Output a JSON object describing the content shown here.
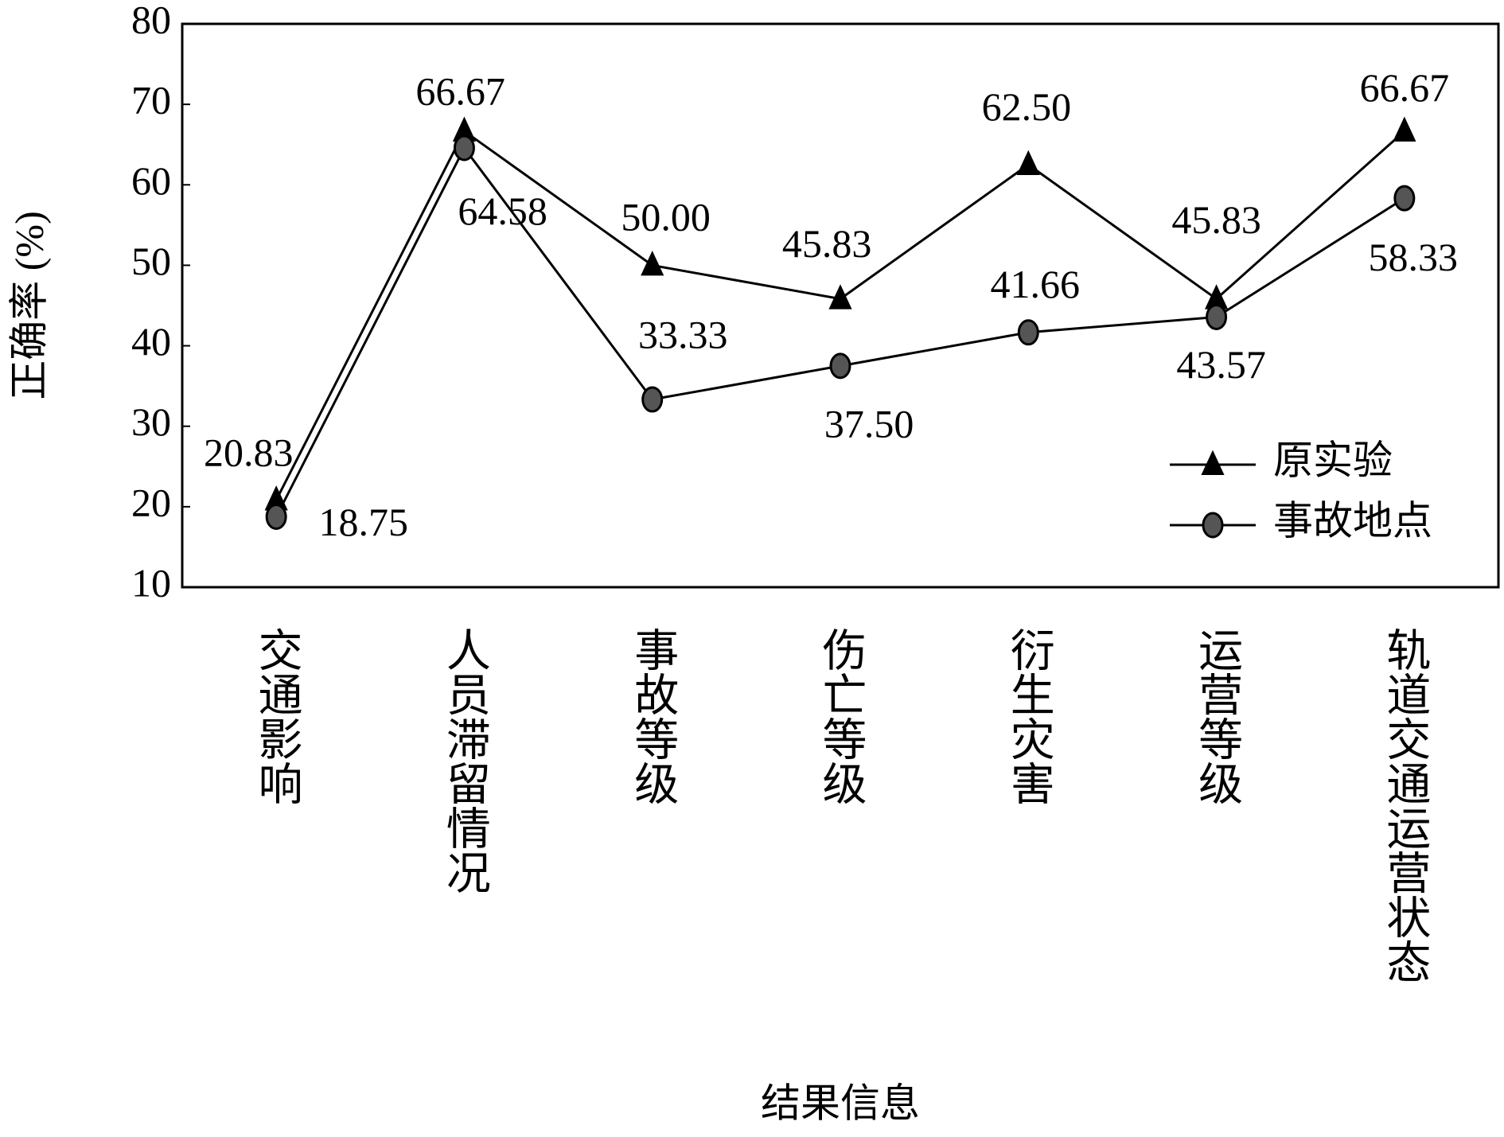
{
  "chart_data": {
    "type": "line",
    "x_label": "结果信息",
    "y_label": "正确率 (%)",
    "categories": [
      "交通影响",
      "人员滞留情况",
      "事故等级",
      "伤亡等级",
      "衍生灾害",
      "运营等级",
      "轨道交通运营状态"
    ],
    "series": [
      {
        "name": "原实验",
        "color": "#000000",
        "marker": "triangle",
        "values": [
          20.83,
          66.67,
          50.0,
          45.83,
          62.5,
          45.83,
          66.67
        ],
        "value_labels": [
          "20.83",
          "66.67",
          "50.00",
          "45.83",
          "62.50",
          "45.83",
          "66.67"
        ]
      },
      {
        "name": "事故地点",
        "color": "#555555",
        "marker": "circle",
        "values": [
          18.75,
          64.58,
          33.33,
          37.5,
          41.66,
          43.57,
          58.33
        ],
        "value_labels": [
          "18.75",
          "64.58",
          "33.33",
          "37.50",
          "41.66",
          "43.57",
          "58.33"
        ]
      }
    ],
    "ylim": [
      10,
      80
    ],
    "yticks": [
      10,
      20,
      30,
      40,
      50,
      60,
      70,
      80
    ],
    "grid": false,
    "legend": "lower right"
  }
}
